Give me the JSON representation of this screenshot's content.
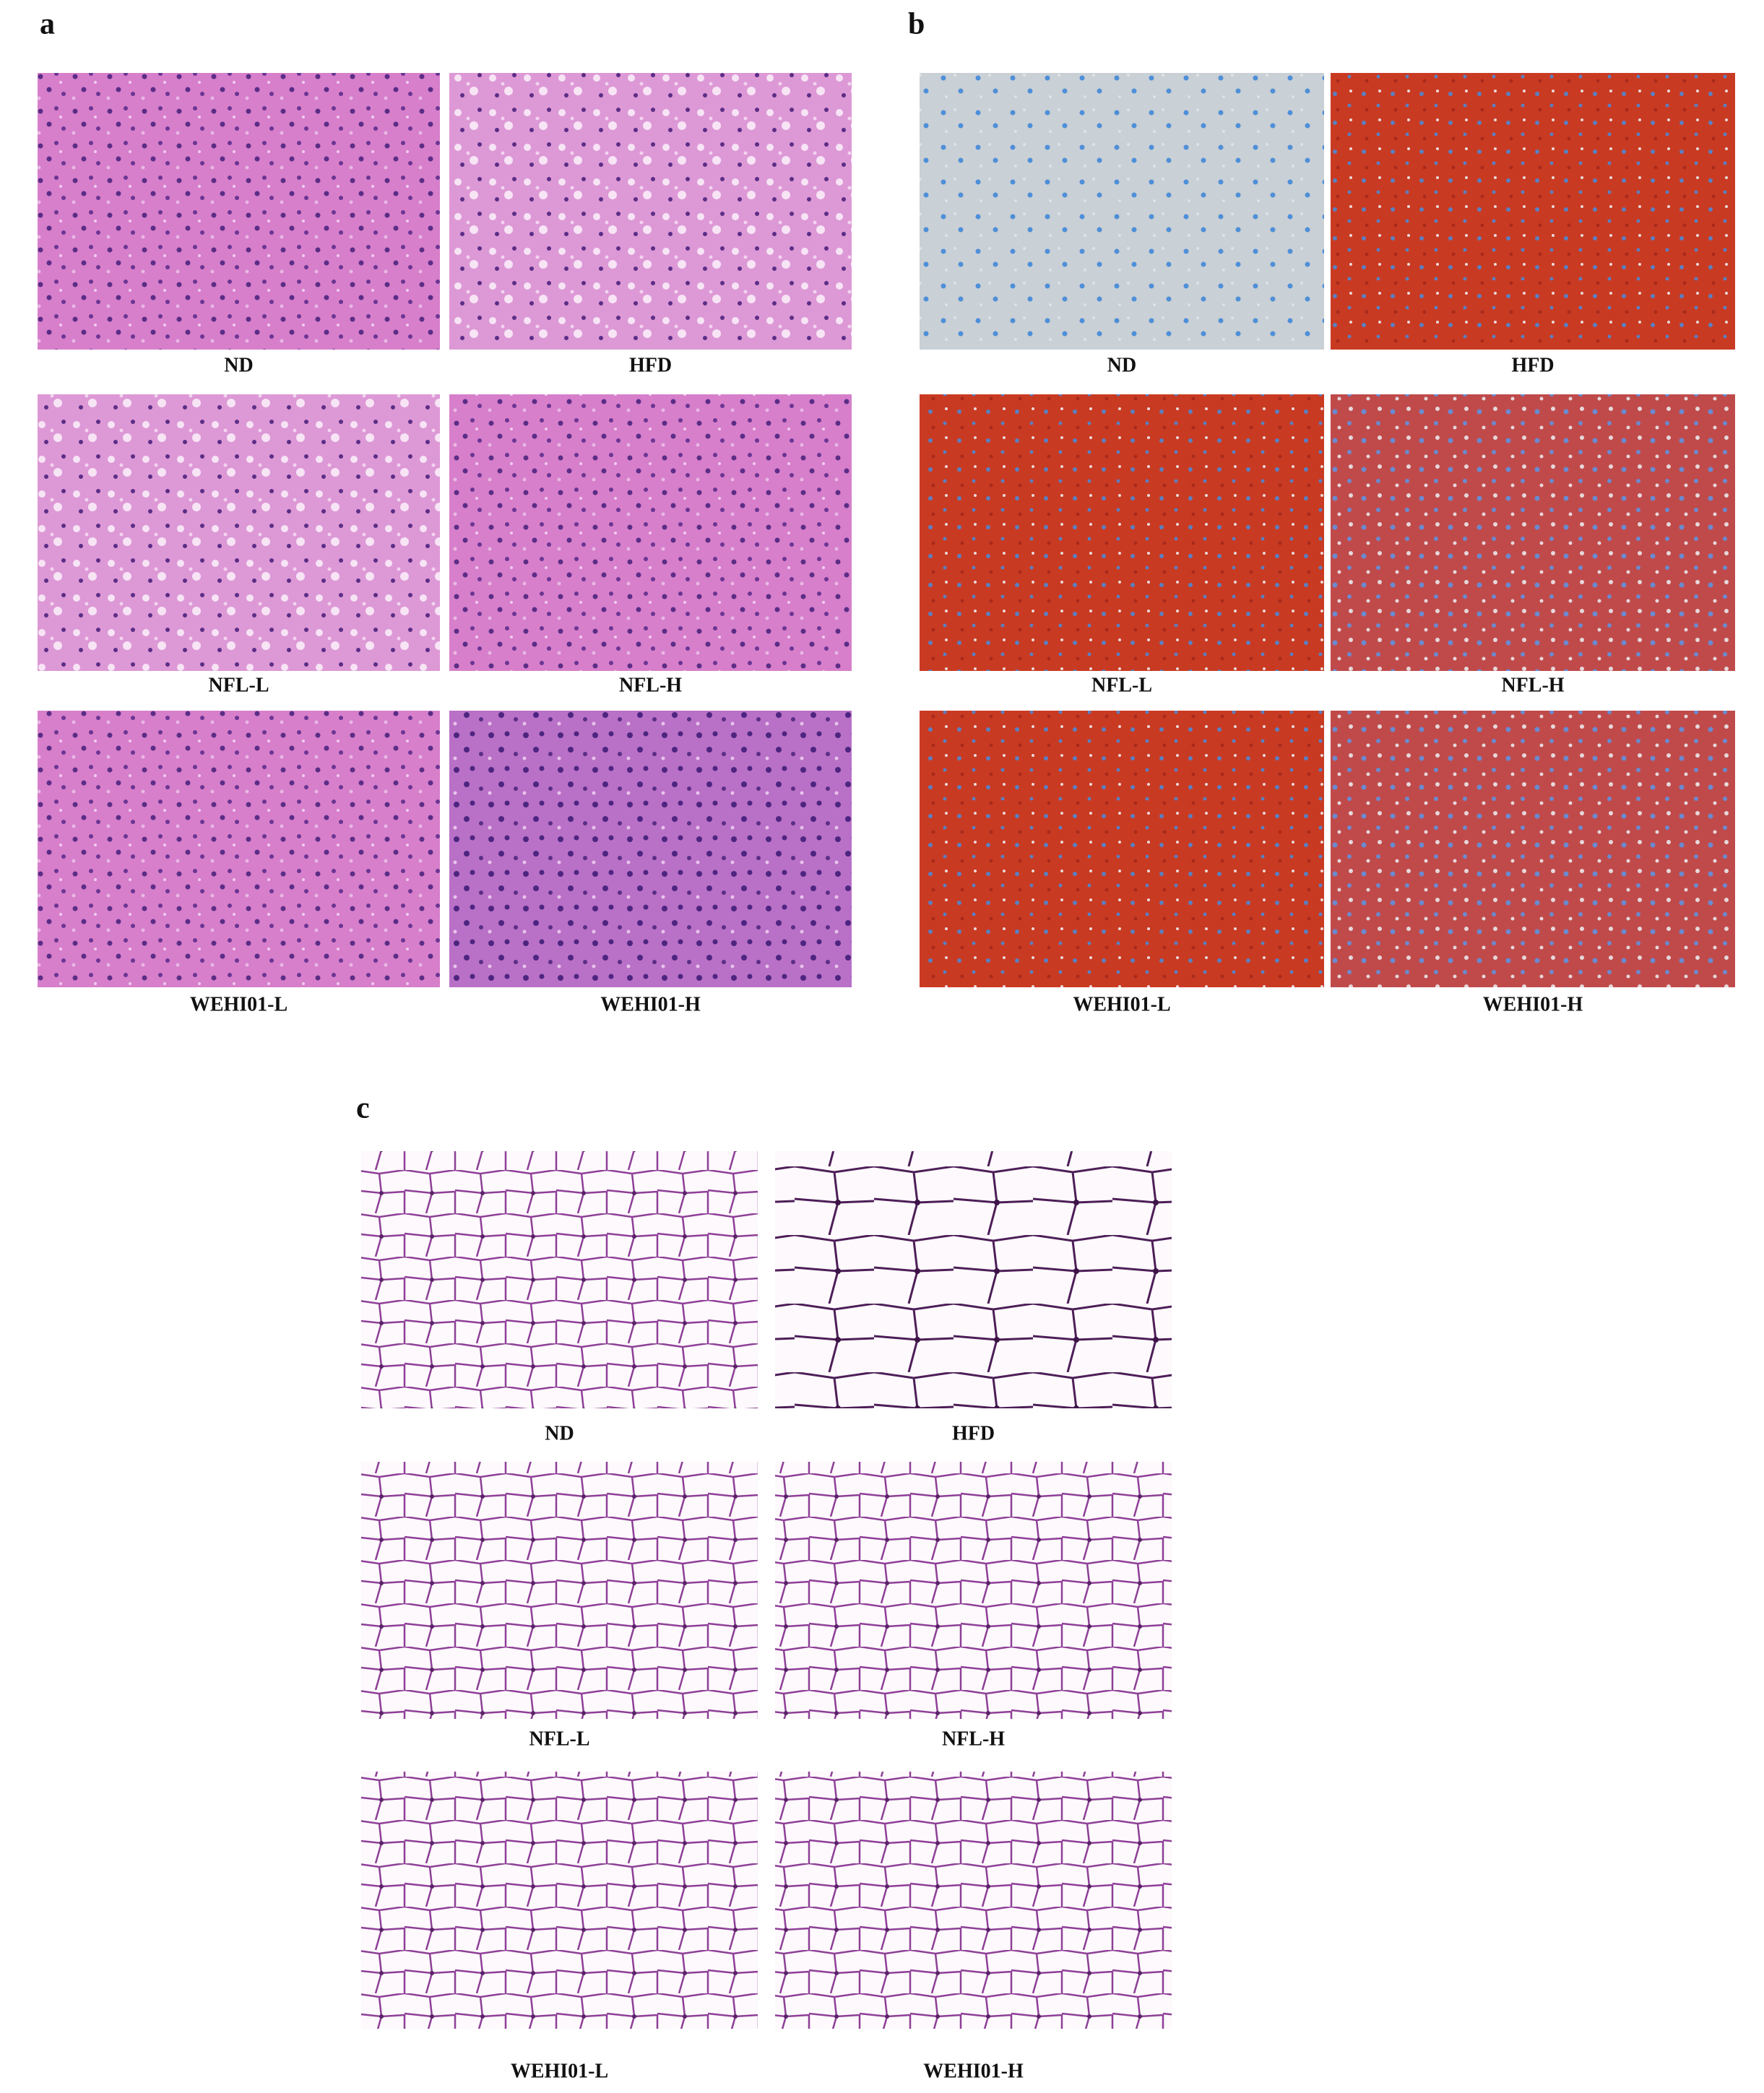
{
  "panels": [
    {
      "label": "a",
      "images": [
        {
          "label": "ND"
        },
        {
          "label": "HFD"
        },
        {
          "label": "NFL-L"
        },
        {
          "label": "NFL-H"
        },
        {
          "label": "WEHI01-L"
        },
        {
          "label": "WEHI01-H"
        }
      ]
    },
    {
      "label": "b",
      "images": [
        {
          "label": "ND"
        },
        {
          "label": "HFD"
        },
        {
          "label": "NFL-L"
        },
        {
          "label": "NFL-H"
        },
        {
          "label": "WEHI01-L"
        },
        {
          "label": "WEHI01-H"
        }
      ]
    },
    {
      "label": "c",
      "images": [
        {
          "label": "ND"
        },
        {
          "label": "HFD"
        },
        {
          "label": "NFL-L"
        },
        {
          "label": "NFL-H"
        },
        {
          "label": "WEHI01-L"
        },
        {
          "label": "WEHI01-H"
        }
      ]
    }
  ]
}
